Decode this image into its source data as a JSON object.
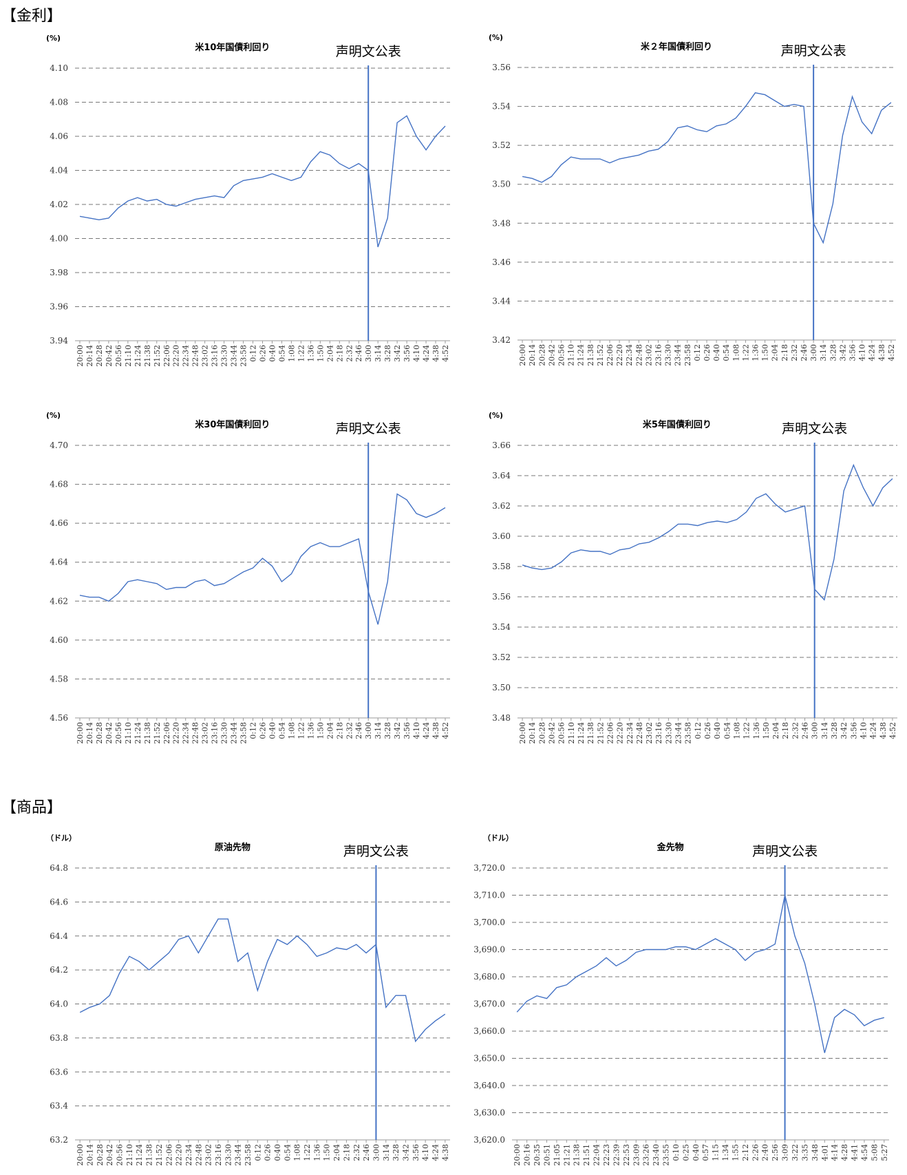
{
  "sections": [
    "【金利】",
    "【商品】"
  ],
  "chart_data": [
    {
      "type": "line",
      "title": "米10年国債利回り",
      "y_unit": "(%)",
      "annotation": {
        "text": "声明文公表",
        "x": "3:00"
      },
      "color": "#4472c4",
      "grid": true,
      "categories": [
        "20:00",
        "20:14",
        "20:28",
        "20:42",
        "20:56",
        "21:10",
        "21:24",
        "21:38",
        "21:52",
        "22:06",
        "22:20",
        "22:34",
        "22:48",
        "23:02",
        "23:16",
        "23:30",
        "23:44",
        "23:58",
        "0:12",
        "0:26",
        "0:40",
        "0:54",
        "1:08",
        "1:22",
        "1:36",
        "1:50",
        "2:04",
        "2:18",
        "2:32",
        "2:46",
        "3:00",
        "3:14",
        "3:28",
        "3:42",
        "3:56",
        "4:10",
        "4:24",
        "4:38",
        "4:52"
      ],
      "values": [
        4.013,
        4.012,
        4.011,
        4.012,
        4.018,
        4.022,
        4.024,
        4.022,
        4.023,
        4.02,
        4.019,
        4.021,
        4.023,
        4.024,
        4.025,
        4.024,
        4.031,
        4.034,
        4.035,
        4.036,
        4.038,
        4.036,
        4.034,
        4.036,
        4.045,
        4.051,
        4.049,
        4.044,
        4.041,
        4.044,
        4.04,
        3.995,
        4.012,
        4.068,
        4.072,
        4.06,
        4.052,
        4.06,
        4.066
      ],
      "ylim": [
        3.94,
        4.1
      ],
      "yticks": [
        3.94,
        3.96,
        3.98,
        {
          "value": 4.0,
          "label": "4.00"
        },
        4.02,
        4.04,
        4.06,
        4.08,
        {
          "value": 4.1,
          "label": "4.10"
        }
      ]
    },
    {
      "type": "line",
      "title": "米２年国債利回り",
      "y_unit": "(%)",
      "annotation": {
        "text": "声明文公表",
        "x": "3:00"
      },
      "color": "#4472c4",
      "grid": true,
      "categories": [
        "20:00",
        "20:14",
        "20:28",
        "20:42",
        "20:56",
        "21:10",
        "21:24",
        "21:38",
        "21:52",
        "22:06",
        "22:20",
        "22:34",
        "22:48",
        "23:02",
        "23:16",
        "23:30",
        "23:44",
        "23:58",
        "0:12",
        "0:26",
        "0:40",
        "0:54",
        "1:08",
        "1:22",
        "1:36",
        "1:50",
        "2:04",
        "2:18",
        "2:32",
        "2:46",
        "3:00",
        "3:14",
        "3:28",
        "3:42",
        "3:56",
        "4:10",
        "4:24",
        "4:38",
        "4:52"
      ],
      "values": [
        3.504,
        3.503,
        3.501,
        3.504,
        3.51,
        3.514,
        3.513,
        3.513,
        3.513,
        3.511,
        3.513,
        3.514,
        3.515,
        3.517,
        3.518,
        3.522,
        3.529,
        3.53,
        3.528,
        3.527,
        3.53,
        3.531,
        3.534,
        3.54,
        3.547,
        3.546,
        3.543,
        3.54,
        3.541,
        3.54,
        3.48,
        3.47,
        3.49,
        3.525,
        3.545,
        3.532,
        3.526,
        3.538,
        3.542
      ],
      "ylim": [
        3.42,
        3.56
      ],
      "yticks": [
        3.42,
        3.44,
        3.46,
        3.48,
        {
          "value": 3.5,
          "label": "3.50"
        },
        3.52,
        3.54,
        3.56
      ]
    },
    {
      "type": "line",
      "title": "米30年国債利回り",
      "y_unit": "(%)",
      "annotation": {
        "text": "声明文公表",
        "x": "3:00"
      },
      "color": "#4472c4",
      "grid": true,
      "categories": [
        "20:00",
        "20:14",
        "20:28",
        "20:42",
        "20:56",
        "21:10",
        "21:24",
        "21:38",
        "21:52",
        "22:06",
        "22:20",
        "22:34",
        "22:48",
        "23:02",
        "23:16",
        "23:30",
        "23:44",
        "23:58",
        "0:12",
        "0:26",
        "0:40",
        "0:54",
        "1:08",
        "1:22",
        "1:36",
        "1:50",
        "2:04",
        "2:18",
        "2:32",
        "2:46",
        "3:00",
        "3:14",
        "3:28",
        "3:42",
        "3:56",
        "4:10",
        "4:24",
        "4:38",
        "4:52"
      ],
      "values": [
        4.623,
        4.622,
        4.622,
        4.62,
        4.624,
        4.63,
        4.631,
        4.63,
        4.629,
        4.626,
        4.627,
        4.627,
        4.63,
        4.631,
        4.628,
        4.629,
        4.632,
        4.635,
        4.637,
        4.642,
        4.638,
        4.63,
        4.634,
        4.643,
        4.648,
        4.65,
        4.648,
        4.648,
        4.65,
        4.652,
        4.625,
        4.608,
        4.63,
        4.675,
        4.672,
        4.665,
        4.663,
        4.665,
        4.668
      ],
      "ylim": [
        4.56,
        4.7
      ],
      "yticks": [
        4.56,
        4.58,
        {
          "value": 4.6,
          "label": "4.60"
        },
        4.62,
        4.64,
        4.66,
        4.68,
        {
          "value": 4.7,
          "label": "4.70"
        }
      ]
    },
    {
      "type": "line",
      "title": "米5年国債利回り",
      "y_unit": "(%)",
      "annotation": {
        "text": "声明文公表",
        "x": "3:00"
      },
      "color": "#4472c4",
      "grid": true,
      "categories": [
        "20:00",
        "20:14",
        "20:28",
        "20:42",
        "20:56",
        "21:10",
        "21:24",
        "21:38",
        "21:52",
        "22:06",
        "22:20",
        "22:34",
        "22:48",
        "23:02",
        "23:16",
        "23:30",
        "23:44",
        "23:58",
        "0:12",
        "0:26",
        "0:40",
        "0:54",
        "1:08",
        "1:22",
        "1:36",
        "1:50",
        "2:04",
        "2:18",
        "2:32",
        "2:46",
        "3:00",
        "3:14",
        "3:28",
        "3:42",
        "3:56",
        "4:10",
        "4:24",
        "4:38",
        "4:52"
      ],
      "values": [
        3.581,
        3.579,
        3.578,
        3.579,
        3.583,
        3.589,
        3.591,
        3.59,
        3.59,
        3.588,
        3.591,
        3.592,
        3.595,
        3.596,
        3.599,
        3.603,
        3.608,
        3.608,
        3.607,
        3.609,
        3.61,
        3.609,
        3.611,
        3.616,
        3.625,
        3.628,
        3.621,
        3.616,
        3.618,
        3.62,
        3.565,
        3.558,
        3.585,
        3.63,
        3.647,
        3.632,
        3.62,
        3.632,
        3.638
      ],
      "ylim": [
        3.48,
        3.66
      ],
      "yticks": [
        3.48,
        {
          "value": 3.5,
          "label": "3.50"
        },
        3.52,
        3.54,
        3.56,
        3.58,
        {
          "value": 3.6,
          "label": "3.60"
        },
        3.62,
        3.64,
        3.66
      ]
    },
    {
      "type": "line",
      "title": "原油先物",
      "y_unit": "（ドル）",
      "annotation": {
        "text": "声明文公表",
        "x": "3:00"
      },
      "color": "#4472c4",
      "grid": true,
      "categories": [
        "20:00",
        "20:14",
        "20:28",
        "20:42",
        "20:56",
        "21:10",
        "21:24",
        "21:38",
        "21:52",
        "22:06",
        "22:20",
        "22:34",
        "22:48",
        "23:02",
        "23:16",
        "23:30",
        "23:44",
        "23:58",
        "0:12",
        "0:26",
        "0:40",
        "0:54",
        "1:08",
        "1:22",
        "1:36",
        "1:50",
        "2:04",
        "2:18",
        "2:32",
        "2:46",
        "3:00",
        "3:14",
        "3:28",
        "3:42",
        "3:56",
        "4:10",
        "4:24",
        "4:38"
      ],
      "values": [
        63.95,
        63.98,
        64.0,
        64.05,
        64.18,
        64.28,
        64.25,
        64.2,
        64.25,
        64.3,
        64.38,
        64.4,
        64.3,
        64.4,
        64.5,
        64.5,
        64.25,
        64.3,
        64.08,
        64.25,
        64.38,
        64.35,
        64.4,
        64.35,
        64.28,
        64.3,
        64.33,
        64.32,
        64.35,
        64.3,
        64.35,
        63.98,
        64.05,
        64.05,
        63.78,
        63.85,
        63.9,
        63.94
      ],
      "ylim": [
        63.2,
        64.8
      ],
      "yticks": [
        63.2,
        63.4,
        63.6,
        63.8,
        {
          "value": 64.0,
          "label": "64.0"
        },
        64.2,
        64.4,
        64.6,
        64.8
      ]
    },
    {
      "type": "line",
      "title": "金先物",
      "y_unit": "（ドル）",
      "annotation": {
        "text": "声明文公表",
        "x": "3:09"
      },
      "color": "#4472c4",
      "grid": true,
      "categories": [
        "20:00",
        "20:16",
        "20:35",
        "20:51",
        "21:05",
        "21:21",
        "21:38",
        "21:51",
        "22:04",
        "22:23",
        "22:39",
        "22:53",
        "23:09",
        "23:26",
        "23:40",
        "23:55",
        "0:10",
        "0:25",
        "0:40",
        "0:57",
        "1:15",
        "1:34",
        "1:55",
        "2:12",
        "2:26",
        "2:40",
        "2:56",
        "3:09",
        "3:22",
        "3:35",
        "3:48",
        "4:01",
        "4:14",
        "4:28",
        "4:41",
        "4:54",
        "5:08",
        "5:27"
      ],
      "values": [
        3667,
        3671,
        3673,
        3672,
        3676,
        3677,
        3680,
        3682,
        3684,
        3687,
        3684,
        3686,
        3689,
        3690,
        3690,
        3690,
        3691,
        3691,
        3690,
        3692,
        3694,
        3692,
        3690,
        3686,
        3689,
        3690,
        3692,
        3710,
        3695,
        3685,
        3670,
        3652,
        3665,
        3668,
        3666,
        3662,
        3664,
        3665
      ],
      "ylim": [
        3620,
        3720
      ],
      "yticks": [
        {
          "value": 3620,
          "label": "3,620.0"
        },
        {
          "value": 3630,
          "label": "3,630.0"
        },
        {
          "value": 3640,
          "label": "3,640.0"
        },
        {
          "value": 3650,
          "label": "3,650.0"
        },
        {
          "value": 3660,
          "label": "3,660.0"
        },
        {
          "value": 3670,
          "label": "3,670.0"
        },
        {
          "value": 3680,
          "label": "3,680.0"
        },
        {
          "value": 3690,
          "label": "3,690.0"
        },
        {
          "value": 3700,
          "label": "3,700.0"
        },
        {
          "value": 3710,
          "label": "3,710.0"
        },
        {
          "value": 3720,
          "label": "3,720.0"
        }
      ]
    }
  ]
}
